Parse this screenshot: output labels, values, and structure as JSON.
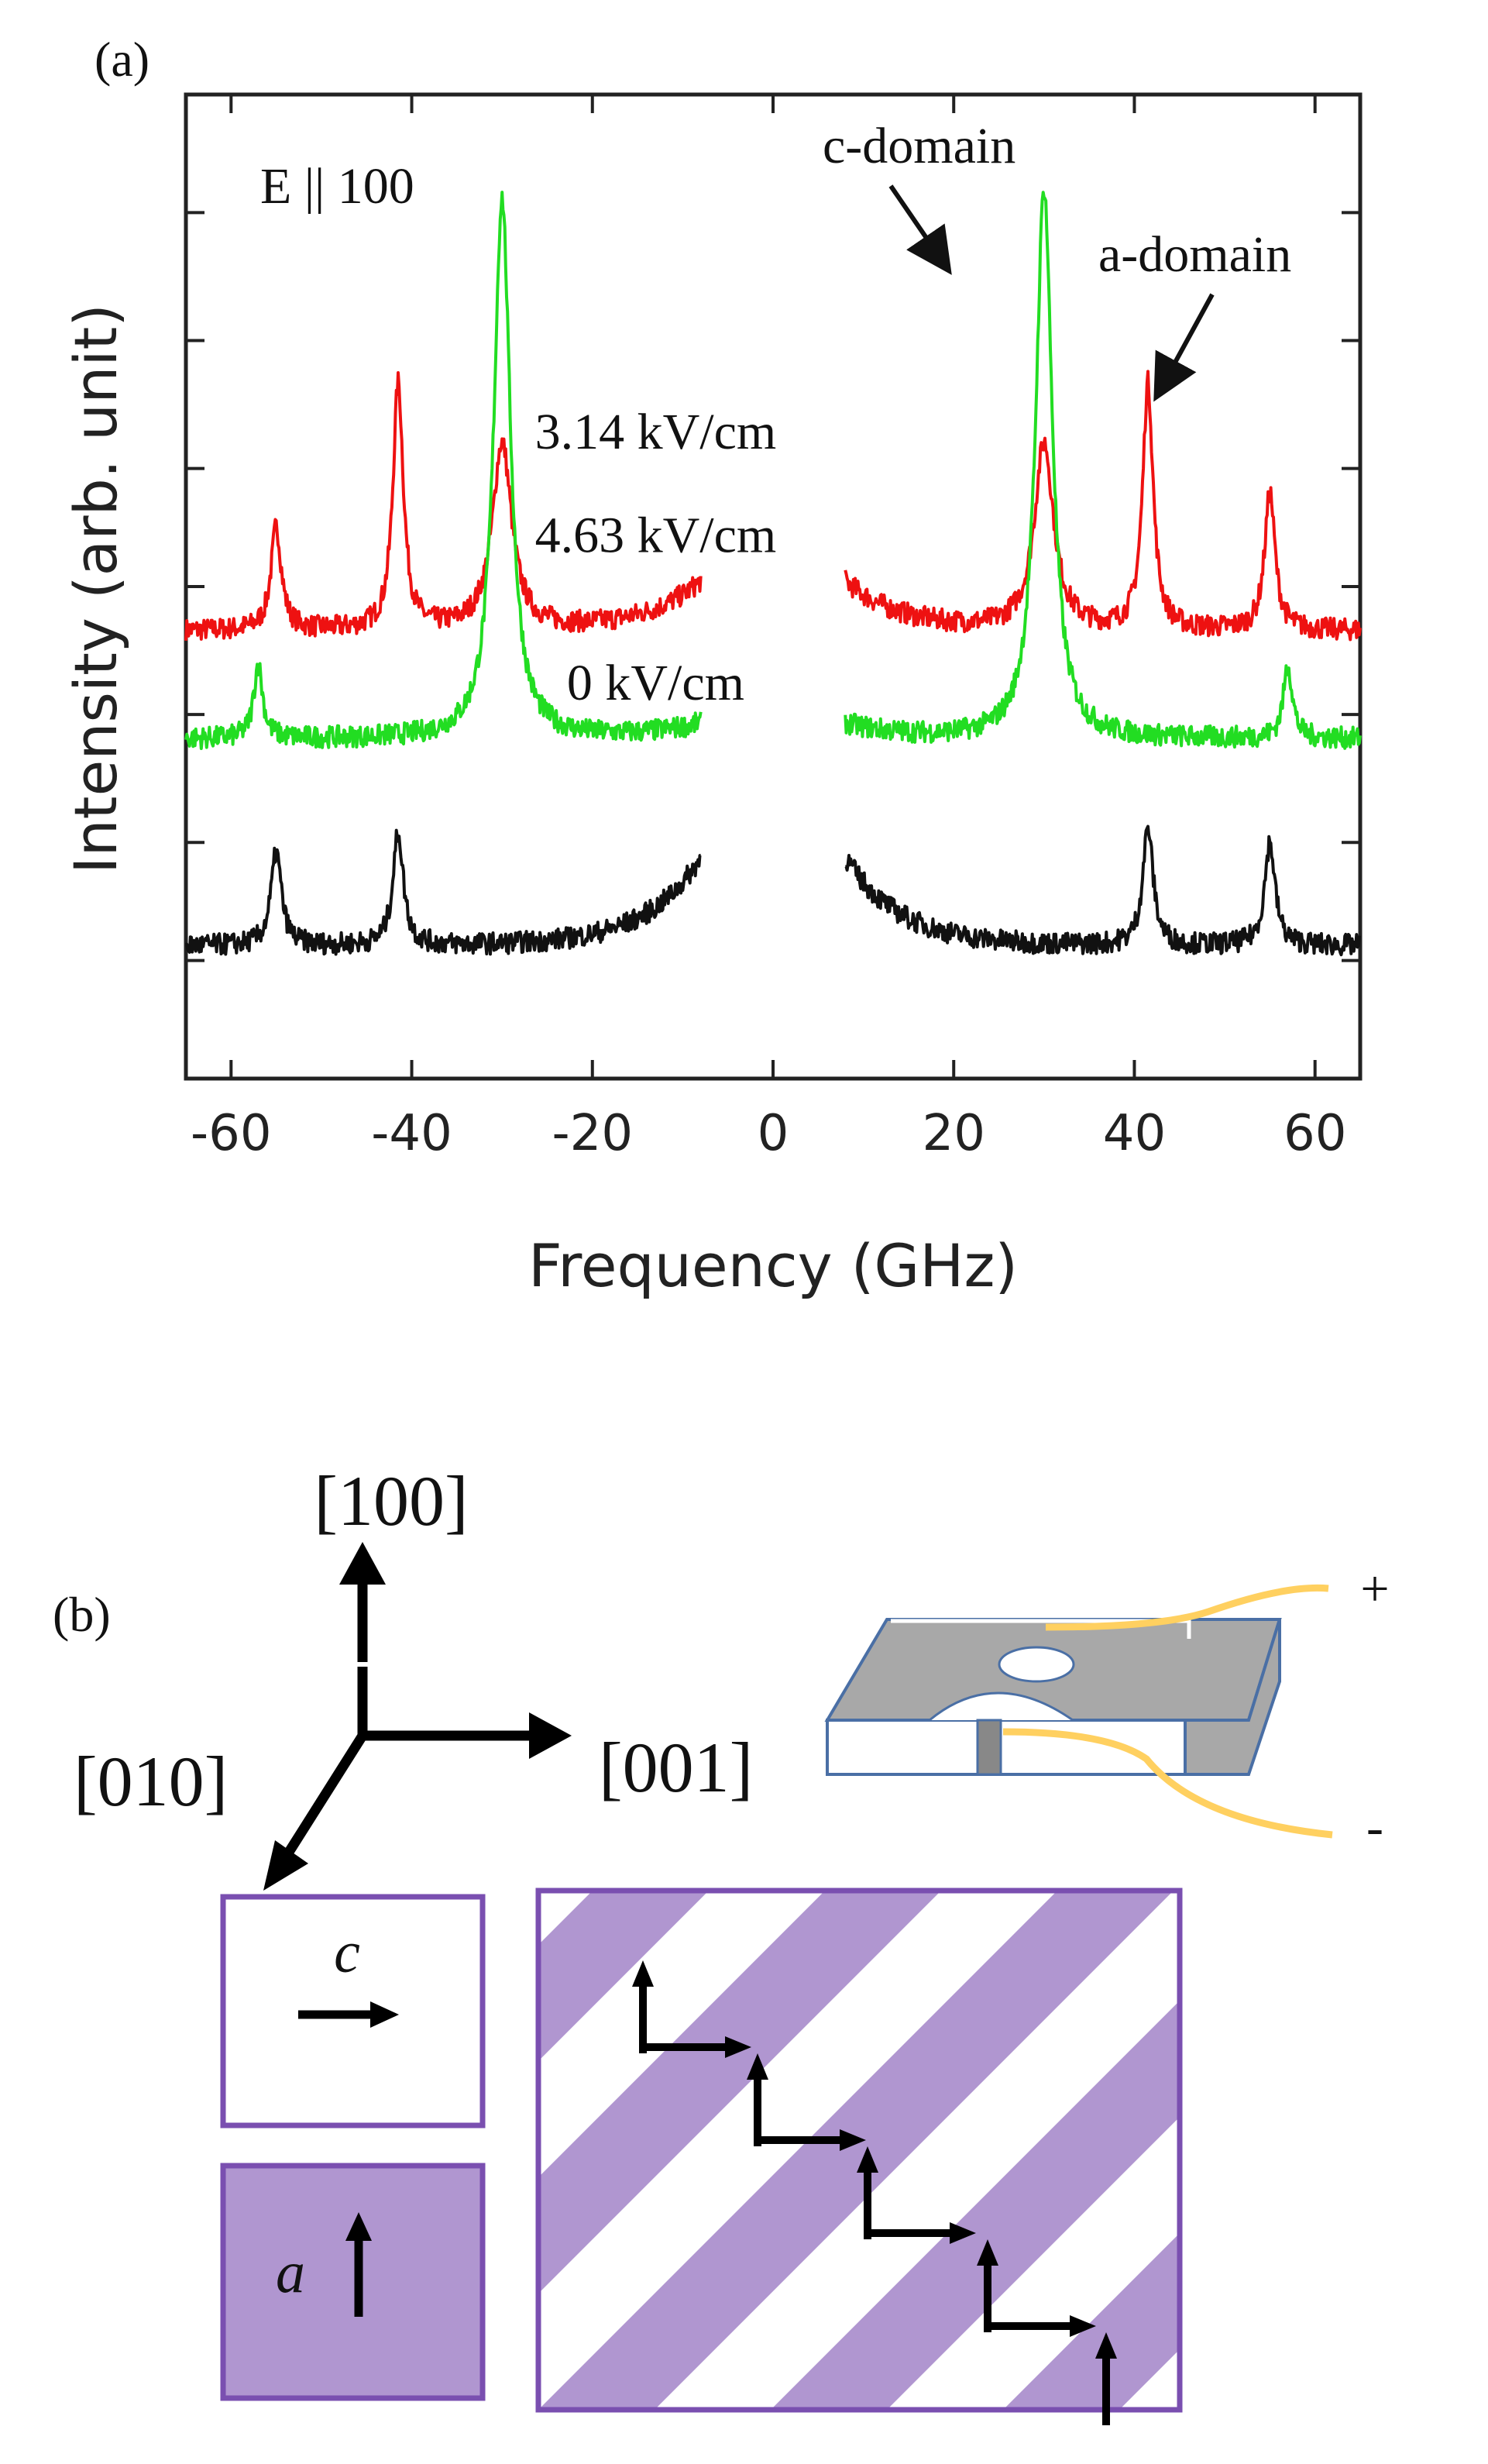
{
  "panel_a": {
    "label": "(a)"
  },
  "panel_b": {
    "label": "(b)",
    "axis_100": "[100]",
    "axis_001": "[001]",
    "axis_010": "[010]",
    "plus": "+",
    "minus": "-",
    "legend_c": "c",
    "legend_a": "a",
    "colors": {
      "domain_fill": "#b096d0",
      "domain_border": "#7a4fb0",
      "wire": "#ffd060",
      "sample_top": "#a8a8a8",
      "sample_edge": "#4a6fa5"
    }
  },
  "chart_data": {
    "type": "line",
    "title": "",
    "xlabel": "Frequency (GHz)",
    "ylabel": "Intensity (arb. unit)",
    "xlim": [
      -65,
      65
    ],
    "ylim": [
      0,
      10
    ],
    "xticks": [
      -60,
      -40,
      -20,
      0,
      20,
      40,
      60
    ],
    "xtick_labels": [
      "-60",
      "-40",
      "-20",
      "0",
      "20",
      "40",
      "60"
    ],
    "yticks_ticks_only": [
      1.2,
      2.4,
      3.7,
      5.0,
      6.2,
      7.5,
      8.8
    ],
    "gap": [
      -8,
      8
    ],
    "annotations": {
      "field": "E || 100",
      "c_domain": "c-domain",
      "a_domain": "a-domain"
    },
    "series": [
      {
        "name": "3.14 kV/cm",
        "color": "#ee1111",
        "baseline": 4.55,
        "rise": 0.5,
        "peaks": [
          {
            "x": -55,
            "h": 1.05,
            "w": 0.7
          },
          {
            "x": -41.5,
            "h": 2.5,
            "w": 0.7
          },
          {
            "x": -30,
            "h": 1.9,
            "w": 1.3
          },
          {
            "x": 30,
            "h": 1.9,
            "w": 1.3
          },
          {
            "x": 41.5,
            "h": 2.5,
            "w": 0.7
          },
          {
            "x": 55,
            "h": 1.4,
            "w": 0.7
          }
        ]
      },
      {
        "name": "4.63 kV/cm",
        "color": "#22dd22",
        "baseline": 3.45,
        "rise": 0.15,
        "peaks": [
          {
            "x": -57,
            "h": 0.75,
            "w": 0.6
          },
          {
            "x": -30,
            "h": 5.5,
            "w": 1.1
          },
          {
            "x": 30,
            "h": 5.6,
            "w": 1.1
          },
          {
            "x": 57,
            "h": 0.75,
            "w": 0.6
          }
        ]
      },
      {
        "name": "0 kV/cm",
        "color": "#111111",
        "baseline": 1.35,
        "rise": 0.9,
        "peaks": [
          {
            "x": -55,
            "h": 0.95,
            "w": 0.7
          },
          {
            "x": -41.5,
            "h": 1.15,
            "w": 0.7
          },
          {
            "x": 41.5,
            "h": 1.2,
            "w": 0.7
          },
          {
            "x": 55,
            "h": 1.05,
            "w": 0.7
          }
        ]
      }
    ]
  }
}
